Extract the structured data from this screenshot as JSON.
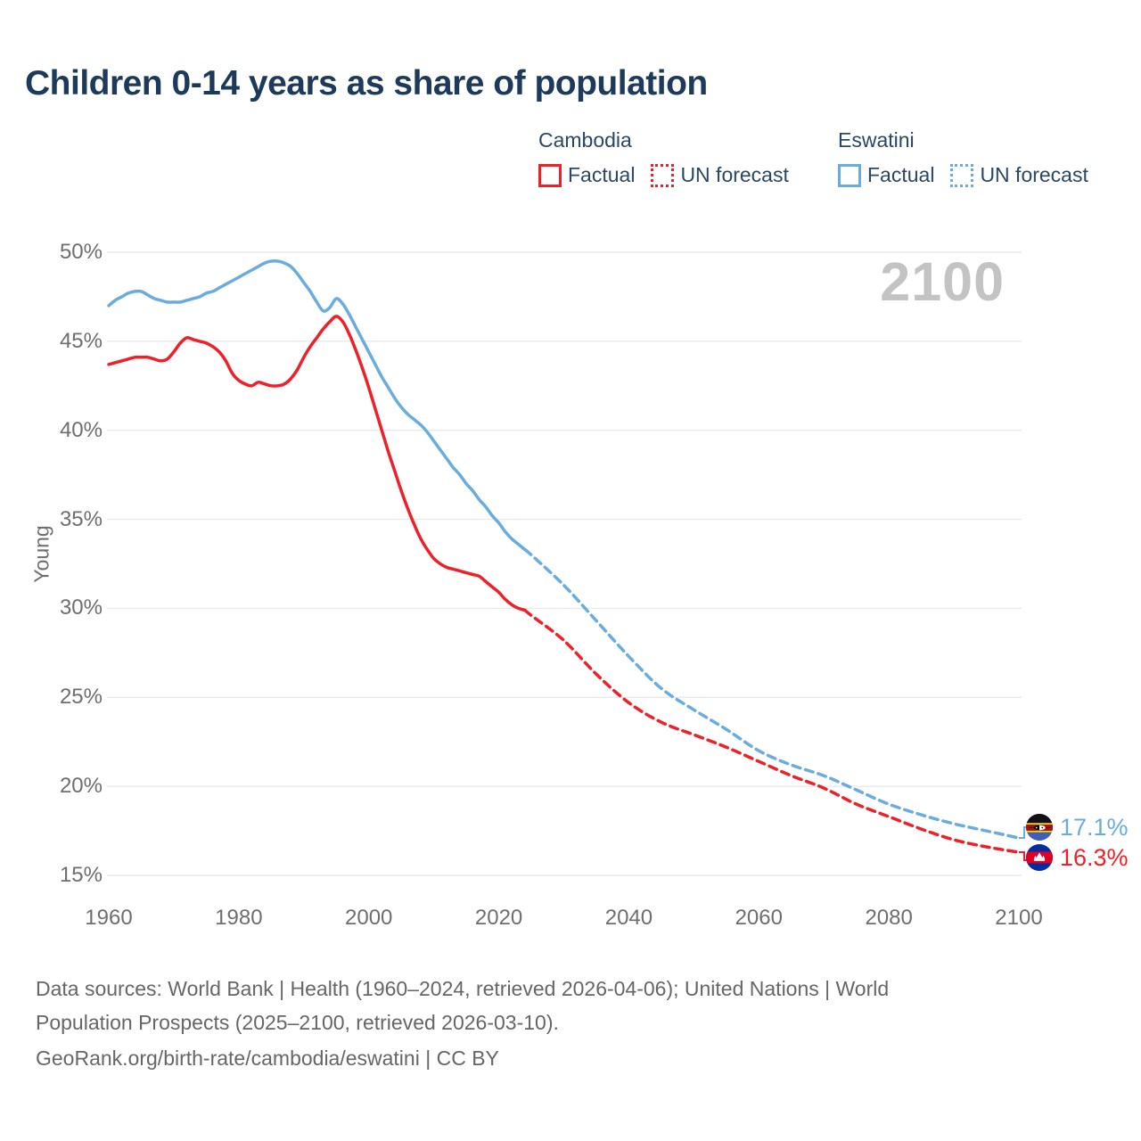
{
  "title": "Children 0-14 years as share of population",
  "watermark": "2100",
  "legend": {
    "groups": [
      {
        "name": "Cambodia",
        "color": "#ee2129",
        "items": [
          {
            "label": "Factual",
            "style": "solid"
          },
          {
            "label": "UN forecast",
            "style": "dotted"
          }
        ]
      },
      {
        "name": "Eswatini",
        "color": "#6bacdf",
        "items": [
          {
            "label": "Factual",
            "style": "solid"
          },
          {
            "label": "UN forecast",
            "style": "dotted"
          }
        ]
      }
    ]
  },
  "y_axis": {
    "title": "Young",
    "tick_labels": [
      "50%",
      "45%",
      "40%",
      "35%",
      "30%",
      "25%",
      "20%",
      "15%"
    ],
    "tick_values": [
      50,
      45,
      40,
      35,
      30,
      25,
      20,
      15
    ]
  },
  "x_axis": {
    "tick_labels": [
      "1960",
      "1980",
      "2000",
      "2020",
      "2040",
      "2060",
      "2080",
      "2100"
    ],
    "tick_values": [
      1960,
      1980,
      2000,
      2020,
      2040,
      2060,
      2080,
      2100
    ]
  },
  "end_labels": [
    {
      "series": "Eswatini",
      "value_label": "17.1%",
      "value": 17.1,
      "color": "#6bacdf",
      "flag": "eswatini"
    },
    {
      "series": "Cambodia",
      "value_label": "16.3%",
      "value": 16.3,
      "color": "#ee2129",
      "flag": "cambodia"
    }
  ],
  "footer": {
    "line1": "Data sources: World Bank | Health (1960–2024, retrieved 2026-04-06); United Nations | World",
    "line2": "Population Prospects (2025–2100, retrieved 2026-03-10).",
    "line3": "GeoRank.org/birth-rate/cambodia/eswatini | CC BY"
  },
  "colors": {
    "cambodia": "#ee2129",
    "eswatini": "#6bacdf",
    "gridline": "#e9e9e9",
    "title_text": "#1e3a5a",
    "tick_text": "#6e6e6e",
    "watermark": "#c3c3c3",
    "footer_text": "#666666"
  },
  "chart_data": {
    "type": "line",
    "title": "Children 0-14 years as share of population",
    "xlabel": "",
    "ylabel": "Young",
    "xlim": [
      1960,
      2100
    ],
    "ylim": [
      15,
      50
    ],
    "grid": true,
    "legend_position": "top-right",
    "series": [
      {
        "name": "Eswatini Factual",
        "color": "#6bacdf",
        "style": "solid",
        "points": [
          [
            1960,
            47.0
          ],
          [
            1961,
            47.3
          ],
          [
            1962,
            47.5
          ],
          [
            1963,
            47.7
          ],
          [
            1964,
            47.8
          ],
          [
            1965,
            47.8
          ],
          [
            1966,
            47.6
          ],
          [
            1967,
            47.4
          ],
          [
            1968,
            47.3
          ],
          [
            1969,
            47.2
          ],
          [
            1970,
            47.2
          ],
          [
            1971,
            47.2
          ],
          [
            1972,
            47.3
          ],
          [
            1973,
            47.4
          ],
          [
            1974,
            47.5
          ],
          [
            1975,
            47.7
          ],
          [
            1976,
            47.8
          ],
          [
            1977,
            48.0
          ],
          [
            1978,
            48.2
          ],
          [
            1979,
            48.4
          ],
          [
            1980,
            48.6
          ],
          [
            1981,
            48.8
          ],
          [
            1982,
            49.0
          ],
          [
            1983,
            49.2
          ],
          [
            1984,
            49.4
          ],
          [
            1985,
            49.5
          ],
          [
            1986,
            49.5
          ],
          [
            1987,
            49.4
          ],
          [
            1988,
            49.2
          ],
          [
            1989,
            48.8
          ],
          [
            1990,
            48.3
          ],
          [
            1991,
            47.8
          ],
          [
            1992,
            47.2
          ],
          [
            1993,
            46.7
          ],
          [
            1994,
            46.9
          ],
          [
            1995,
            47.4
          ],
          [
            1996,
            47.1
          ],
          [
            1997,
            46.5
          ],
          [
            1998,
            45.8
          ],
          [
            1999,
            45.1
          ],
          [
            2000,
            44.4
          ],
          [
            2001,
            43.7
          ],
          [
            2002,
            43.0
          ],
          [
            2003,
            42.4
          ],
          [
            2004,
            41.8
          ],
          [
            2005,
            41.3
          ],
          [
            2006,
            40.9
          ],
          [
            2007,
            40.6
          ],
          [
            2008,
            40.3
          ],
          [
            2009,
            39.9
          ],
          [
            2010,
            39.4
          ],
          [
            2011,
            38.9
          ],
          [
            2012,
            38.4
          ],
          [
            2013,
            37.9
          ],
          [
            2014,
            37.5
          ],
          [
            2015,
            37.0
          ],
          [
            2016,
            36.6
          ],
          [
            2017,
            36.1
          ],
          [
            2018,
            35.7
          ],
          [
            2019,
            35.2
          ],
          [
            2020,
            34.8
          ],
          [
            2021,
            34.3
          ],
          [
            2022,
            33.9
          ],
          [
            2023,
            33.6
          ],
          [
            2024,
            33.3
          ]
        ]
      },
      {
        "name": "Eswatini UN forecast",
        "color": "#6bacdf",
        "style": "dashed",
        "points": [
          [
            2024,
            33.3
          ],
          [
            2025,
            33.0
          ],
          [
            2030,
            31.3
          ],
          [
            2035,
            29.3
          ],
          [
            2040,
            27.3
          ],
          [
            2045,
            25.5
          ],
          [
            2050,
            24.3
          ],
          [
            2055,
            23.2
          ],
          [
            2060,
            22.0
          ],
          [
            2065,
            21.2
          ],
          [
            2070,
            20.6
          ],
          [
            2075,
            19.8
          ],
          [
            2080,
            19.0
          ],
          [
            2085,
            18.4
          ],
          [
            2090,
            17.9
          ],
          [
            2095,
            17.5
          ],
          [
            2100,
            17.1
          ]
        ]
      },
      {
        "name": "Cambodia Factual",
        "color": "#ee2129",
        "style": "solid",
        "points": [
          [
            1960,
            43.7
          ],
          [
            1961,
            43.8
          ],
          [
            1962,
            43.9
          ],
          [
            1963,
            44.0
          ],
          [
            1964,
            44.1
          ],
          [
            1965,
            44.1
          ],
          [
            1966,
            44.1
          ],
          [
            1967,
            44.0
          ],
          [
            1968,
            43.9
          ],
          [
            1969,
            44.0
          ],
          [
            1970,
            44.4
          ],
          [
            1971,
            44.9
          ],
          [
            1972,
            45.2
          ],
          [
            1973,
            45.1
          ],
          [
            1974,
            45.0
          ],
          [
            1975,
            44.9
          ],
          [
            1976,
            44.7
          ],
          [
            1977,
            44.4
          ],
          [
            1978,
            43.9
          ],
          [
            1979,
            43.2
          ],
          [
            1980,
            42.8
          ],
          [
            1981,
            42.6
          ],
          [
            1982,
            42.5
          ],
          [
            1983,
            42.7
          ],
          [
            1984,
            42.6
          ],
          [
            1985,
            42.5
          ],
          [
            1986,
            42.5
          ],
          [
            1987,
            42.6
          ],
          [
            1988,
            42.9
          ],
          [
            1989,
            43.4
          ],
          [
            1990,
            44.1
          ],
          [
            1991,
            44.7
          ],
          [
            1992,
            45.2
          ],
          [
            1993,
            45.7
          ],
          [
            1994,
            46.1
          ],
          [
            1995,
            46.4
          ],
          [
            1996,
            46.1
          ],
          [
            1997,
            45.4
          ],
          [
            1998,
            44.5
          ],
          [
            1999,
            43.5
          ],
          [
            2000,
            42.4
          ],
          [
            2001,
            41.2
          ],
          [
            2002,
            40.0
          ],
          [
            2003,
            38.8
          ],
          [
            2004,
            37.7
          ],
          [
            2005,
            36.6
          ],
          [
            2006,
            35.6
          ],
          [
            2007,
            34.7
          ],
          [
            2008,
            33.9
          ],
          [
            2009,
            33.3
          ],
          [
            2010,
            32.8
          ],
          [
            2011,
            32.5
          ],
          [
            2012,
            32.3
          ],
          [
            2013,
            32.2
          ],
          [
            2014,
            32.1
          ],
          [
            2015,
            32.0
          ],
          [
            2016,
            31.9
          ],
          [
            2017,
            31.8
          ],
          [
            2018,
            31.5
          ],
          [
            2019,
            31.2
          ],
          [
            2020,
            30.9
          ],
          [
            2021,
            30.5
          ],
          [
            2022,
            30.2
          ],
          [
            2023,
            30.0
          ],
          [
            2024,
            29.9
          ]
        ]
      },
      {
        "name": "Cambodia UN forecast",
        "color": "#ee2129",
        "style": "dashed",
        "points": [
          [
            2024,
            29.9
          ],
          [
            2025,
            29.6
          ],
          [
            2030,
            28.2
          ],
          [
            2035,
            26.3
          ],
          [
            2040,
            24.7
          ],
          [
            2045,
            23.6
          ],
          [
            2050,
            22.9
          ],
          [
            2055,
            22.2
          ],
          [
            2060,
            21.4
          ],
          [
            2065,
            20.6
          ],
          [
            2070,
            19.9
          ],
          [
            2075,
            19.0
          ],
          [
            2080,
            18.3
          ],
          [
            2085,
            17.6
          ],
          [
            2090,
            17.0
          ],
          [
            2095,
            16.6
          ],
          [
            2100,
            16.3
          ]
        ]
      }
    ]
  }
}
